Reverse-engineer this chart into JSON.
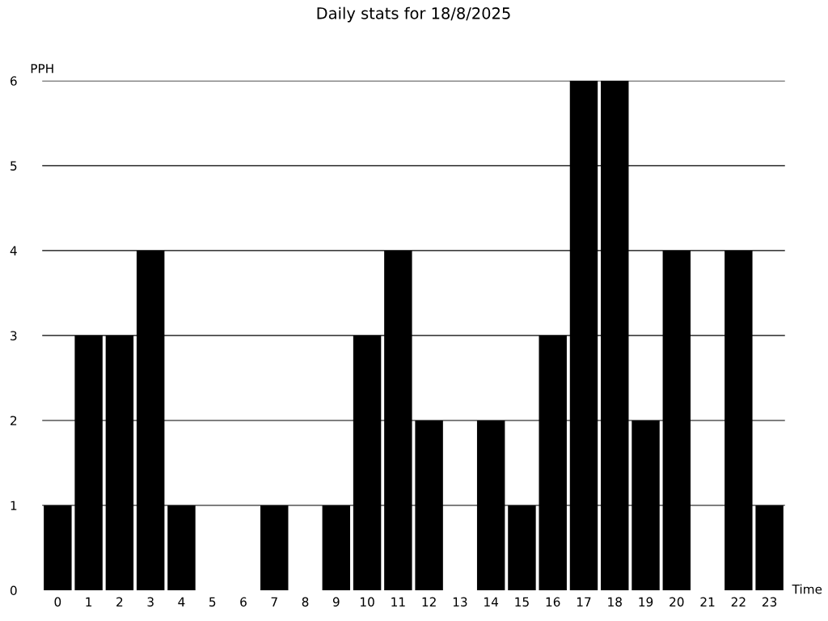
{
  "chart_data": {
    "type": "bar",
    "title": "Daily stats for 18/8/2025",
    "xlabel": "Time",
    "ylabel": "PPH",
    "categories": [
      "0",
      "1",
      "2",
      "3",
      "4",
      "5",
      "6",
      "7",
      "8",
      "9",
      "10",
      "11",
      "12",
      "13",
      "14",
      "15",
      "16",
      "17",
      "18",
      "19",
      "20",
      "21",
      "22",
      "23"
    ],
    "values": [
      1,
      3,
      3,
      4,
      1,
      0,
      0,
      1,
      0,
      1,
      3,
      4,
      2,
      0,
      2,
      1,
      3,
      6,
      6,
      2,
      4,
      0,
      4,
      1
    ],
    "color": "#000000",
    "ylim": [
      0,
      6
    ],
    "yticks": [
      0,
      1,
      2,
      3,
      4,
      5,
      6
    ],
    "grid": "y",
    "legend": false
  }
}
